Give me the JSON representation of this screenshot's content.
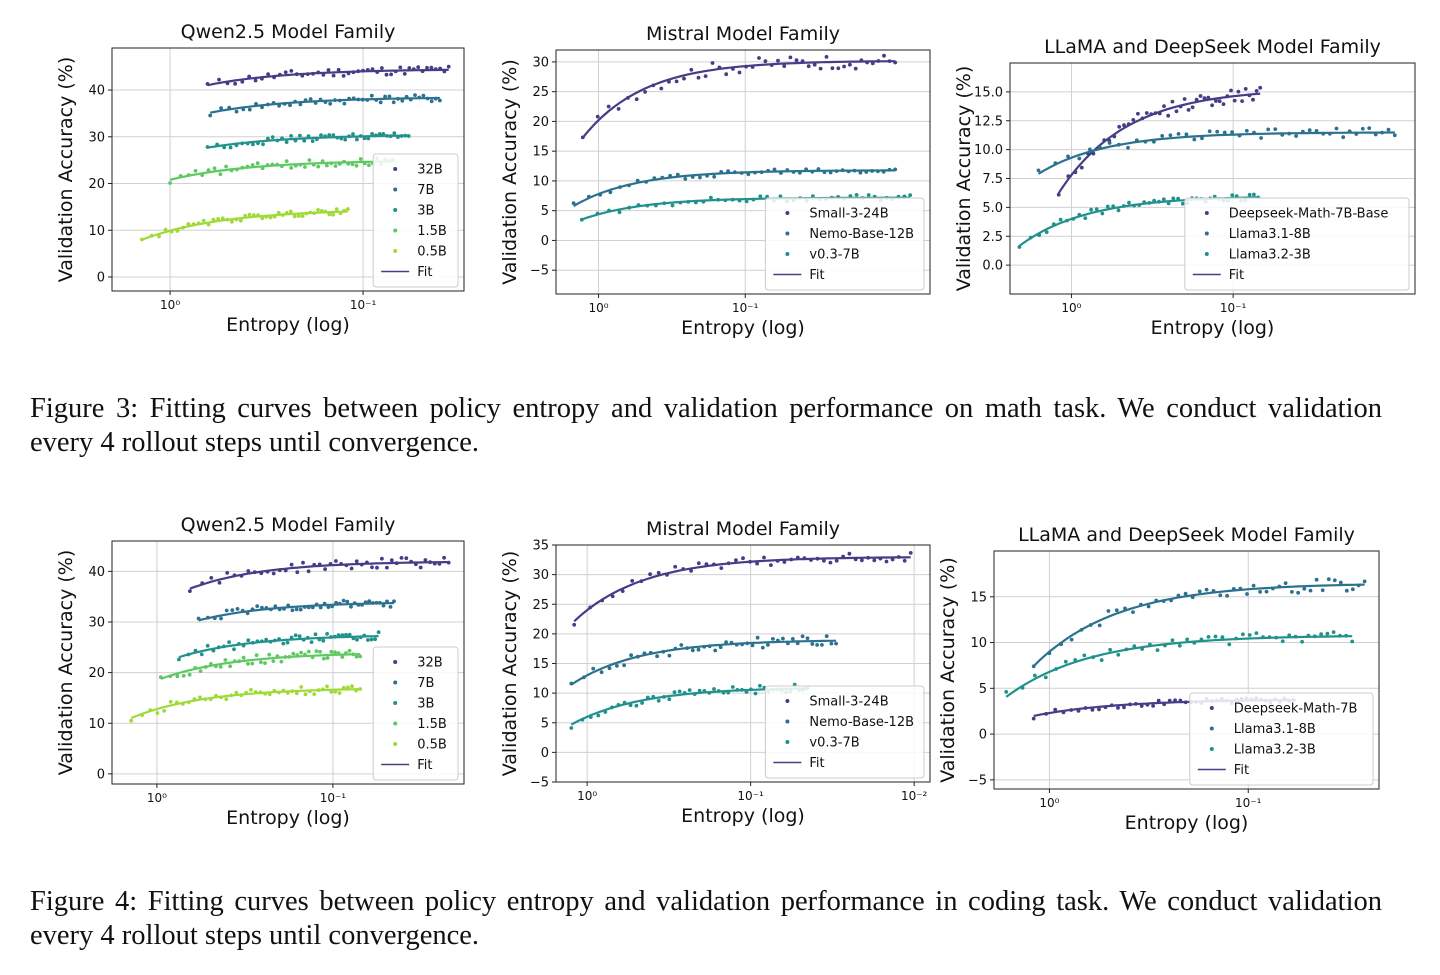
{
  "figures": [
    {
      "caption": "Figure 3: Fitting curves between policy entropy and validation performance on math task. We conduct validation every 4 rollout steps until convergence."
    },
    {
      "caption": "Figure 4: Fitting curves between policy entropy and validation performance in coding task. We conduct validation every 4 rollout steps until convergence."
    }
  ],
  "chart_data": [
    {
      "type": "scatter",
      "title": "Qwen2.5 Model Family",
      "xlabel": "Entropy (log)",
      "ylabel": "Validation Accuracy (%)",
      "xscale": "log-reversed",
      "xlim": [
        2.0,
        0.03
      ],
      "ylim": [
        -3,
        49
      ],
      "xticks": [
        {
          "value": 1.0,
          "label": "10⁰"
        },
        {
          "value": 0.1,
          "label": "10⁻¹"
        }
      ],
      "yticks": [
        0,
        10,
        20,
        30,
        40
      ],
      "grid": true,
      "legend_position": "lower-right",
      "fit_label": "Fit",
      "series": [
        {
          "name": "32B",
          "color": "#433e85",
          "fit": {
            "a": -5.5,
            "b": 44.5
          },
          "x_range": [
            0.64,
            0.036
          ],
          "noise": 0.9
        },
        {
          "name": "7B",
          "color": "#2c728e",
          "fit": {
            "a": -5.5,
            "b": 38.5
          },
          "x_range": [
            0.62,
            0.04
          ],
          "noise": 0.8
        },
        {
          "name": "3B",
          "color": "#21918c",
          "fit": {
            "a": -4.5,
            "b": 30.5
          },
          "x_range": [
            0.64,
            0.058
          ],
          "noise": 0.7
        },
        {
          "name": "1.5B",
          "color": "#5ec962",
          "fit": {
            "a": -4.2,
            "b": 25.0
          },
          "x_range": [
            1.0,
            0.07
          ],
          "noise": 0.8
        },
        {
          "name": "0.5B",
          "color": "#a0da39",
          "fit": {
            "a": -4.6,
            "b": 14.5
          },
          "x_range": [
            1.4,
            0.12
          ],
          "noise": 0.6
        }
      ]
    },
    {
      "type": "scatter",
      "title": "Mistral Model Family",
      "xlabel": "Entropy (log)",
      "ylabel": "Validation Accuracy (%)",
      "xscale": "log-reversed",
      "xlim": [
        1.95,
        0.0055
      ],
      "ylim": [
        -9,
        32
      ],
      "xticks": [
        {
          "value": 1.0,
          "label": "10⁰"
        },
        {
          "value": 0.1,
          "label": "10⁻¹"
        }
      ],
      "yticks": [
        -5,
        0,
        5,
        10,
        15,
        20,
        25,
        30
      ],
      "grid": true,
      "legend_position": "lower-right",
      "fit_label": "Fit",
      "series": [
        {
          "name": "Small-3-24B",
          "color": "#433e85",
          "fit": {
            "a": -10.0,
            "b": 30.2
          },
          "x_range": [
            1.28,
            0.0095
          ],
          "noise": 1.2
        },
        {
          "name": "Nemo-Base-12B",
          "color": "#2c728e",
          "fit": {
            "a": -4.0,
            "b": 11.8
          },
          "x_range": [
            1.48,
            0.0095
          ],
          "noise": 0.5
        },
        {
          "name": "v0.3-7B",
          "color": "#21918c",
          "fit": {
            "a": -2.8,
            "b": 7.2
          },
          "x_range": [
            1.3,
            0.0075
          ],
          "noise": 0.5
        }
      ]
    },
    {
      "type": "scatter",
      "title": "LLaMA and DeepSeek Model Family",
      "xlabel": "Entropy (log)",
      "ylabel": "Validation Accuracy (%)",
      "xscale": "log-reversed",
      "xlim": [
        2.4,
        0.0075
      ],
      "ylim": [
        -2.5,
        17.5
      ],
      "xticks": [
        {
          "value": 1.0,
          "label": "10⁰"
        },
        {
          "value": 0.1,
          "label": "10⁻¹"
        }
      ],
      "yticks": [
        0.0,
        2.5,
        5.0,
        7.5,
        10.0,
        12.5,
        15.0
      ],
      "ytick_format": "fixed1",
      "grid": true,
      "legend_position": "lower-right",
      "fit_label": "Fit",
      "series": [
        {
          "name": "Deepseek-Math-7B-Base",
          "color": "#433e85",
          "fit": {
            "a": -7.5,
            "b": 15.3
          },
          "x_range": [
            1.2,
            0.068
          ],
          "noise": 0.6
        },
        {
          "name": "Llama3.1-8B",
          "color": "#2c728e",
          "fit": {
            "a": -2.2,
            "b": 11.5
          },
          "x_range": [
            1.6,
            0.01
          ],
          "noise": 0.4
        },
        {
          "name": "Llama3.2-3B",
          "color": "#21918c",
          "fit": {
            "a": -2.0,
            "b": 6.0
          },
          "x_range": [
            2.1,
            0.07
          ],
          "noise": 0.3
        }
      ]
    },
    {
      "type": "scatter",
      "title": "Qwen2.5 Model Family",
      "xlabel": "Entropy (log)",
      "ylabel": "Validation Accuracy (%)",
      "xscale": "log-reversed",
      "xlim": [
        1.8,
        0.018
      ],
      "ylim": [
        -2,
        46
      ],
      "xticks": [
        {
          "value": 1.0,
          "label": "10⁰"
        },
        {
          "value": 0.1,
          "label": "10⁻¹"
        }
      ],
      "yticks": [
        0,
        10,
        20,
        30,
        40
      ],
      "grid": true,
      "legend_position": "lower-right",
      "fit_label": "Fit",
      "series": [
        {
          "name": "32B",
          "color": "#433e85",
          "fit": {
            "a": -8.5,
            "b": 42.0
          },
          "x_range": [
            0.65,
            0.022
          ],
          "noise": 1.0
        },
        {
          "name": "7B",
          "color": "#2c728e",
          "fit": {
            "a": -6.5,
            "b": 34.0
          },
          "x_range": [
            0.58,
            0.045
          ],
          "noise": 0.8
        },
        {
          "name": "3B",
          "color": "#21918c",
          "fit": {
            "a": -6.0,
            "b": 27.5
          },
          "x_range": [
            0.75,
            0.055
          ],
          "noise": 0.8
        },
        {
          "name": "1.5B",
          "color": "#5ec962",
          "fit": {
            "a": -5.5,
            "b": 24.0
          },
          "x_range": [
            0.95,
            0.07
          ],
          "noise": 0.9
        },
        {
          "name": "0.5B",
          "color": "#a0da39",
          "fit": {
            "a": -4.2,
            "b": 17.0
          },
          "x_range": [
            1.4,
            0.07
          ],
          "noise": 0.8
        }
      ]
    },
    {
      "type": "scatter",
      "title": "Mistral Model Family",
      "xlabel": "Entropy (log)",
      "ylabel": "Validation Accuracy (%)",
      "xscale": "log-reversed",
      "xlim": [
        1.55,
        0.008
      ],
      "ylim": [
        -5,
        35
      ],
      "xticks": [
        {
          "value": 1.0,
          "label": "10⁰"
        },
        {
          "value": 0.1,
          "label": "10⁻¹"
        },
        {
          "value": 0.01,
          "label": "10⁻²"
        }
      ],
      "yticks": [
        -5,
        0,
        5,
        10,
        15,
        20,
        25,
        30,
        35
      ],
      "grid": true,
      "legend_position": "lower-right",
      "fit_label": "Fit",
      "series": [
        {
          "name": "Small-3-24B",
          "color": "#433e85",
          "fit": {
            "a": -9.0,
            "b": 33.0
          },
          "x_range": [
            1.2,
            0.0105
          ],
          "noise": 0.8
        },
        {
          "name": "Nemo-Base-12B",
          "color": "#2c728e",
          "fit": {
            "a": -6.0,
            "b": 19.0
          },
          "x_range": [
            1.25,
            0.03
          ],
          "noise": 0.9
        },
        {
          "name": "v0.3-7B",
          "color": "#21918c",
          "fit": {
            "a": -5.0,
            "b": 11.0
          },
          "x_range": [
            1.25,
            0.045
          ],
          "noise": 0.7
        }
      ]
    },
    {
      "type": "scatter",
      "title": "LLaMA and DeepSeek Model Family",
      "xlabel": "Entropy (log)",
      "ylabel": "Validation Accuracy (%)",
      "xscale": "log-reversed",
      "xlim": [
        1.9,
        0.022
      ],
      "ylim": [
        -6,
        20
      ],
      "xticks": [
        {
          "value": 1.0,
          "label": "10⁰"
        },
        {
          "value": 0.1,
          "label": "10⁻¹"
        }
      ],
      "yticks": [
        -5,
        0,
        5,
        10,
        15
      ],
      "grid": true,
      "legend_position": "lower-right",
      "fit_label": "Fit",
      "series": [
        {
          "name": "Deepseek-Math-7B",
          "color": "#433e85",
          "fit": {
            "a": -1.5,
            "b": 3.8
          },
          "x_range": [
            1.2,
            0.059
          ],
          "noise": 0.3
        },
        {
          "name": "Llama3.1-8B",
          "color": "#2c728e",
          "fit": {
            "a": -7.5,
            "b": 16.5
          },
          "x_range": [
            1.2,
            0.026
          ],
          "noise": 0.7
        },
        {
          "name": "Llama3.2-3B",
          "color": "#21918c",
          "fit": {
            "a": -4.0,
            "b": 10.8
          },
          "x_range": [
            1.65,
            0.03
          ],
          "noise": 0.6
        }
      ]
    }
  ]
}
